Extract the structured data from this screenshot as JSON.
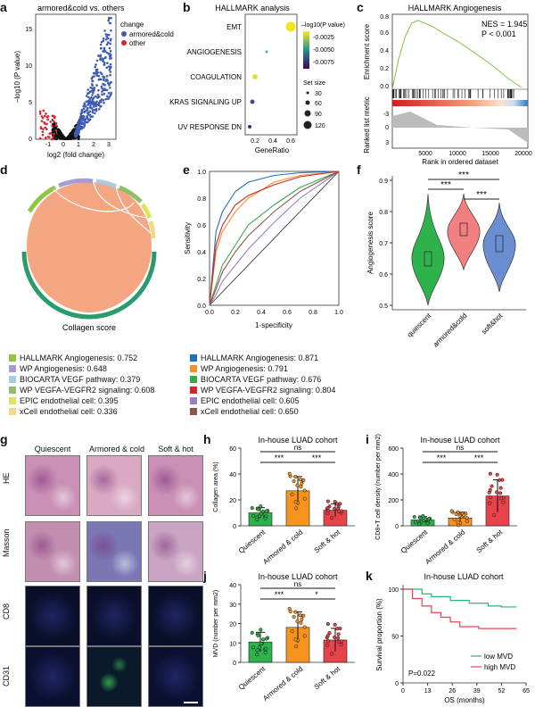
{
  "labels": {
    "a": "a",
    "b": "b",
    "c": "c",
    "d": "d",
    "e": "e",
    "f": "f",
    "g": "g",
    "h": "h",
    "i": "i",
    "j": "j",
    "k": "k"
  },
  "a": {
    "title": "armored&cold vs. others",
    "ylabel": "–log10 (P value)",
    "xlabel": "log2 (fold change)",
    "legend_title": "change",
    "legend": [
      {
        "name": "armored&cold",
        "color": "#3b5bb5"
      },
      {
        "name": "other",
        "color": "#e0202a"
      }
    ],
    "yticks": [
      "0",
      "5",
      "10",
      "15"
    ],
    "xticks": [
      "-1",
      "0",
      "1",
      "2",
      "3"
    ]
  },
  "b": {
    "title": "HALLMARK analysis",
    "xlabel": "GeneRatio",
    "terms": [
      "EMT",
      "ANGIOGENESIS",
      "COAGULATION",
      "KRAS SIGNALING UP",
      "UV RESPONSE DN"
    ],
    "xticks": [
      "0.2",
      "0.4",
      "0.6"
    ],
    "color_title": "–log10(P value)",
    "color_ticks": [
      "-0.0025",
      "-0.0050",
      "-0.0075"
    ],
    "size_title": "Set size",
    "size_ticks": [
      "30",
      "60",
      "90",
      "120"
    ]
  },
  "c": {
    "title": "HALLMARK Angiogenesis",
    "nes": "NES = 1.945",
    "p": "P < 0.001",
    "ylabel_top": "Enrichment score",
    "ylabel_bottom": "Ranked list metric",
    "xlabel": "Rank in ordered dataset",
    "yticks": [
      "0.0",
      "0.2",
      "0.4",
      "0.6",
      "0.8"
    ],
    "yticks2": [
      "-3",
      "0",
      "3"
    ],
    "xticks": [
      "5000",
      "10000",
      "15000",
      "20000"
    ]
  },
  "d": {
    "title": "Collagen score",
    "items": [
      {
        "text": "HALLMARK Angiogenesis: 0.752",
        "color": "#8dc63f"
      },
      {
        "text": "WP Angiogenesis: 0.648",
        "color": "#a79bd4"
      },
      {
        "text": "BIOCARTA VEGF pathway: 0.379",
        "color": "#a6cbe3"
      },
      {
        "text": "WP VEGFA-VEGFR2 signaling: 0.608",
        "color": "#8fbf6b"
      },
      {
        "text": "EPIC endothelial cell: 0.395",
        "color": "#d9e65c"
      },
      {
        "text": "xCell endothelial cell: 0.336",
        "color": "#f2d98a"
      }
    ]
  },
  "e": {
    "ylabel": "Sensitivity",
    "xlabel": "1-specificity",
    "ticks": [
      "0.0",
      "0.2",
      "0.4",
      "0.6",
      "0.8",
      "1.0"
    ],
    "items": [
      {
        "text": "HALLMARK Angiogenesis: 0.871",
        "color": "#1f6fc6"
      },
      {
        "text": "WP Angiogenesis: 0.791",
        "color": "#f28e2b"
      },
      {
        "text": "BIOCARTA VEGF pathway: 0.676",
        "color": "#3aa64a"
      },
      {
        "text": "WP VEGFA-VEGFR2 signaling: 0.804",
        "color": "#d62728"
      },
      {
        "text": "EPIC endothelial cell: 0.605",
        "color": "#9b7fc2"
      },
      {
        "text": "xCell endothelial cell: 0.650",
        "color": "#8c564b"
      }
    ]
  },
  "f": {
    "ylabel": "Angiogenesis score",
    "yticks": [
      "0.5",
      "0.6",
      "0.7",
      "0.8",
      "0.9"
    ],
    "groups": [
      "quiescent",
      "armored&cold",
      "soft&hot"
    ],
    "sig": [
      "***",
      "***",
      "***"
    ]
  },
  "g": {
    "cols": [
      "Quiescent",
      "Armored & cold",
      "Soft & hot"
    ],
    "rows": [
      "HE",
      "Masson",
      "CD8",
      "CD31"
    ]
  },
  "h": {
    "title": "In-house LUAD cohort",
    "ylabel": "Collagen area (%)",
    "yticks": [
      "0",
      "20",
      "40",
      "60"
    ],
    "groups": [
      "Quiescent",
      "Armored & cold",
      "Soft & hot"
    ],
    "sig": [
      "***",
      "ns",
      "***"
    ]
  },
  "i": {
    "title": "In-house LUAD cohort",
    "ylabel": "CD8+T cell density (number per mm2)",
    "yticks": [
      "0",
      "200",
      "400",
      "600"
    ],
    "groups": [
      "Quiescent",
      "Armored & cold",
      "Soft & hot"
    ],
    "sig": [
      "***",
      "ns",
      "***"
    ]
  },
  "j": {
    "title": "In-house LUAD cohort",
    "ylabel": "MVD (number per mm2)",
    "yticks": [
      "0",
      "10",
      "20",
      "30",
      "40"
    ],
    "groups": [
      "Quiescent",
      "Armored & cold",
      "Soft & hot"
    ],
    "sig": [
      "***",
      "ns",
      "*"
    ]
  },
  "k": {
    "title": "In-house LUAD cohort",
    "ylabel": "Survival proportion (%)",
    "xlabel": "OS (months)",
    "yticks": [
      "0",
      "50",
      "100"
    ],
    "xticks": [
      "0",
      "13",
      "26",
      "39",
      "52",
      "65"
    ],
    "p": "P=0.022",
    "legend": [
      {
        "name": "low MVD",
        "color": "#2bb573"
      },
      {
        "name": "high MVD",
        "color": "#e8434b"
      }
    ]
  },
  "chart_data": [
    {
      "panel": "a",
      "type": "scatter",
      "title": "armored&cold vs. others",
      "xlabel": "log2 (fold change)",
      "ylabel": "–log10 (P value)",
      "xlim": [
        -2,
        3.3
      ],
      "ylim": [
        0,
        17
      ],
      "series": [
        {
          "name": "armored&cold",
          "x": [
            0.7,
            1.0,
            1.3,
            1.6,
            2.0,
            2.4,
            2.8
          ],
          "y": [
            1.5,
            4,
            6,
            9,
            12,
            14,
            15
          ]
        },
        {
          "name": "other",
          "x": [
            -1.7,
            -1.3,
            -1.0,
            -0.7,
            -0.5
          ],
          "y": [
            3.5,
            2.5,
            2,
            1.5,
            1
          ]
        }
      ]
    },
    {
      "panel": "b",
      "type": "scatter",
      "title": "HALLMARK analysis",
      "xlabel": "GeneRatio",
      "categories": [
        "EMT",
        "ANGIOGENESIS",
        "COAGULATION",
        "KRAS SIGNALING UP",
        "UV RESPONSE DN"
      ],
      "x": [
        0.6,
        0.35,
        0.23,
        0.2,
        0.17
      ],
      "set_size": [
        120,
        30,
        60,
        50,
        40
      ],
      "log10p": [
        -0.0005,
        -0.0045,
        -0.001,
        -0.008,
        -0.0075
      ],
      "xlim": [
        0.1,
        0.65
      ]
    },
    {
      "panel": "c",
      "type": "line",
      "title": "HALLMARK Angiogenesis",
      "xlabel": "Rank in ordered dataset",
      "ylabel": "Enrichment score",
      "x": [
        0,
        1000,
        2000,
        3000,
        4000,
        6000,
        8000,
        10000,
        12000,
        14000,
        16000,
        18000,
        20000
      ],
      "y": [
        0,
        0.35,
        0.6,
        0.75,
        0.78,
        0.72,
        0.63,
        0.55,
        0.45,
        0.35,
        0.24,
        0.12,
        0.02
      ],
      "xlim": [
        0,
        21000
      ],
      "ylim": [
        0,
        0.85
      ]
    },
    {
      "panel": "e",
      "type": "line",
      "xlabel": "1-specificity",
      "ylabel": "Sensitivity",
      "xlim": [
        0,
        1
      ],
      "ylim": [
        0,
        1
      ],
      "series": [
        {
          "name": "HALLMARK Angiogenesis: 0.871",
          "x": [
            0,
            0.05,
            0.1,
            0.2,
            0.3,
            0.5,
            0.7,
            1
          ],
          "y": [
            0,
            0.55,
            0.7,
            0.85,
            0.92,
            0.97,
            0.99,
            1
          ]
        },
        {
          "name": "WP Angiogenesis: 0.791",
          "x": [
            0,
            0.05,
            0.1,
            0.2,
            0.3,
            0.5,
            0.7,
            1
          ],
          "y": [
            0,
            0.4,
            0.55,
            0.7,
            0.8,
            0.92,
            0.97,
            1
          ]
        },
        {
          "name": "BIOCARTA VEGF pathway: 0.676",
          "x": [
            0,
            0.05,
            0.1,
            0.2,
            0.3,
            0.5,
            0.7,
            1
          ],
          "y": [
            0,
            0.15,
            0.3,
            0.45,
            0.6,
            0.75,
            0.88,
            1
          ]
        },
        {
          "name": "WP VEGFA-VEGFR2 signaling: 0.804",
          "x": [
            0,
            0.05,
            0.1,
            0.2,
            0.3,
            0.5,
            0.7,
            1
          ],
          "y": [
            0,
            0.45,
            0.6,
            0.75,
            0.82,
            0.9,
            0.96,
            1
          ]
        },
        {
          "name": "EPIC endothelial cell: 0.605",
          "x": [
            0,
            0.05,
            0.1,
            0.2,
            0.3,
            0.5,
            0.7,
            1
          ],
          "y": [
            0,
            0.08,
            0.18,
            0.3,
            0.42,
            0.62,
            0.8,
            1
          ]
        },
        {
          "name": "xCell endothelial cell: 0.650",
          "x": [
            0,
            0.05,
            0.1,
            0.2,
            0.3,
            0.5,
            0.7,
            1
          ],
          "y": [
            0,
            0.12,
            0.25,
            0.4,
            0.52,
            0.7,
            0.85,
            1
          ]
        }
      ]
    },
    {
      "panel": "f",
      "type": "bar",
      "title": "",
      "ylabel": "Angiogenesis score",
      "categories": [
        "quiescent",
        "armored&cold",
        "soft&hot"
      ],
      "values": [
        0.7,
        0.76,
        0.73
      ],
      "ylim": [
        0.5,
        0.9
      ]
    },
    {
      "panel": "h",
      "type": "bar",
      "title": "In-house LUAD cohort",
      "ylabel": "Collagen area (%)",
      "categories": [
        "Quiescent",
        "Armored & cold",
        "Soft & hot"
      ],
      "values": [
        10,
        27,
        12
      ],
      "errors": [
        4,
        11,
        5
      ],
      "ylim": [
        0,
        60
      ]
    },
    {
      "panel": "i",
      "type": "bar",
      "title": "In-house LUAD cohort",
      "ylabel": "CD8+T cell density (number per mm2)",
      "categories": [
        "Quiescent",
        "Armored & cold",
        "Soft & hot"
      ],
      "values": [
        45,
        60,
        230
      ],
      "errors": [
        25,
        45,
        125
      ],
      "ylim": [
        0,
        600
      ]
    },
    {
      "panel": "j",
      "type": "bar",
      "title": "In-house LUAD cohort",
      "ylabel": "MVD (number per mm2)",
      "categories": [
        "Quiescent",
        "Armored & cold",
        "Soft & hot"
      ],
      "values": [
        10.5,
        18,
        11.5
      ],
      "errors": [
        5,
        8,
        6
      ],
      "ylim": [
        0,
        40
      ]
    },
    {
      "panel": "k",
      "type": "line",
      "title": "In-house LUAD cohort",
      "xlabel": "OS (months)",
      "ylabel": "Survival proportion (%)",
      "xlim": [
        0,
        65
      ],
      "ylim": [
        0,
        100
      ],
      "series": [
        {
          "name": "low MVD",
          "x": [
            0,
            10,
            15,
            25,
            35,
            45,
            52,
            60
          ],
          "y": [
            100,
            95,
            92,
            88,
            85,
            82,
            81,
            81
          ]
        },
        {
          "name": "high MVD",
          "x": [
            0,
            5,
            10,
            15,
            20,
            25,
            30,
            40,
            52,
            60
          ],
          "y": [
            100,
            90,
            82,
            75,
            70,
            65,
            60,
            58,
            58,
            58
          ]
        }
      ]
    }
  ]
}
